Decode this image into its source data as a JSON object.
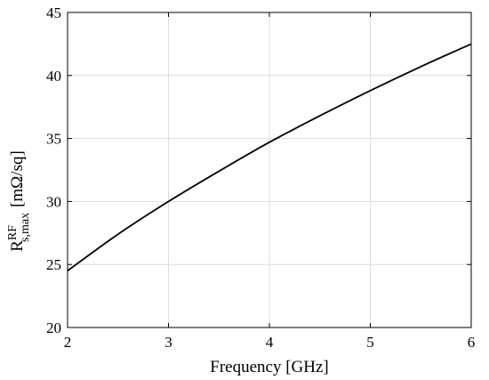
{
  "chart_data": {
    "type": "line",
    "title": "",
    "xlabel": "Frequency [GHz]",
    "ylabel": {
      "main": "R",
      "superscript": "RF",
      "subscript": "s,max",
      "unit": "[mΩ/sq]"
    },
    "xlim": [
      2,
      6
    ],
    "ylim": [
      20,
      45
    ],
    "xticks": [
      2,
      3,
      4,
      5,
      6
    ],
    "yticks": [
      20,
      25,
      30,
      35,
      40,
      45
    ],
    "grid": true,
    "series": [
      {
        "color": "#000000",
        "x": [
          2.0,
          2.5,
          3.0,
          3.5,
          4.0,
          4.5,
          5.0,
          5.5,
          6.0
        ],
        "y": [
          24.5,
          27.4,
          30.0,
          32.4,
          34.7,
          36.8,
          38.8,
          40.7,
          42.5
        ]
      }
    ]
  }
}
